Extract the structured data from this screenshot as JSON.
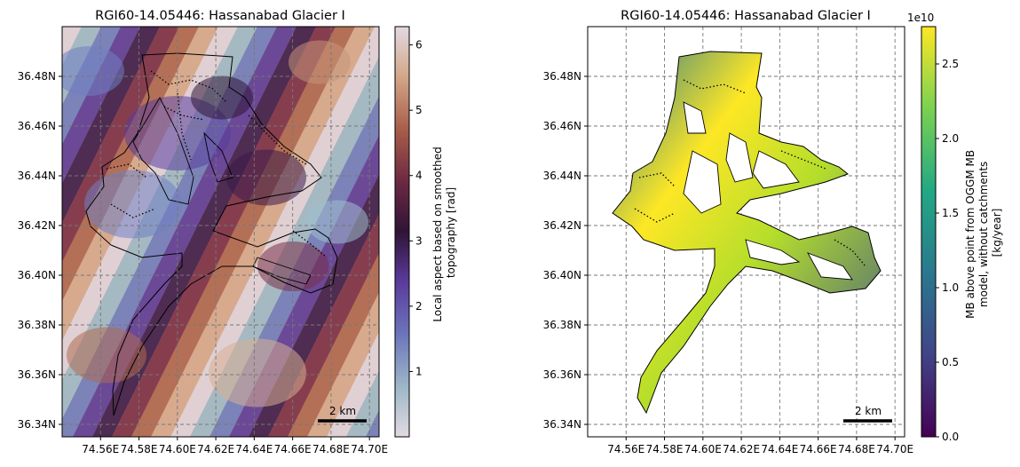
{
  "chart_data": [
    {
      "type": "heatmap",
      "title": "RGI60-14.05446: Hassanabad Glacier I",
      "xlabel": "",
      "ylabel": "",
      "x_ticks": [
        "74.56E",
        "74.58E",
        "74.60E",
        "74.62E",
        "74.64E",
        "74.66E",
        "74.68E",
        "74.70E"
      ],
      "y_ticks": [
        "36.34N",
        "36.36N",
        "36.38N",
        "36.40N",
        "36.42N",
        "36.44N",
        "36.46N",
        "36.48N"
      ],
      "xlim": [
        74.54,
        74.705
      ],
      "ylim": [
        36.335,
        36.5
      ],
      "grid": true,
      "colorbar": {
        "label_lines": [
          "Local aspect based on smoothed",
          "topography [rad]"
        ],
        "ticks": [
          "1",
          "2",
          "3",
          "4",
          "5",
          "6"
        ],
        "range": [
          0,
          6.28
        ],
        "colormap": "twilight"
      },
      "scale_bar": "2 km"
    },
    {
      "type": "heatmap",
      "title": "RGI60-14.05446: Hassanabad Glacier I",
      "xlabel": "",
      "ylabel": "",
      "x_ticks": [
        "74.56E",
        "74.58E",
        "74.60E",
        "74.62E",
        "74.64E",
        "74.66E",
        "74.68E",
        "74.70E"
      ],
      "y_ticks": [
        "36.34N",
        "36.36N",
        "36.38N",
        "36.40N",
        "36.42N",
        "36.44N",
        "36.46N",
        "36.48N"
      ],
      "xlim": [
        74.54,
        74.705
      ],
      "ylim": [
        36.335,
        36.5
      ],
      "grid": true,
      "colorbar": {
        "label_lines": [
          "MB above point from OGGM MB",
          "model, without catchments",
          "[kg/year]"
        ],
        "ticks": [
          "0.0",
          "0.5",
          "1.0",
          "1.5",
          "2.0",
          "2.5"
        ],
        "offset": "1e10",
        "range": [
          0,
          2.75
        ],
        "colormap": "viridis"
      },
      "scale_bar": "2 km"
    }
  ]
}
